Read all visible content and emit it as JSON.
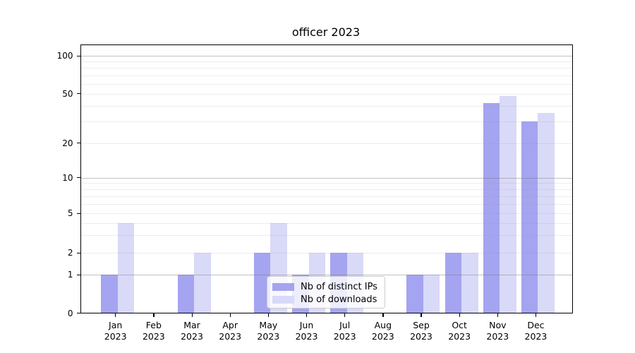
{
  "title": "officer 2023",
  "colors": {
    "distinct_ips_bar": "#a4a4f0",
    "downloads_bar": "#d9d9f8",
    "grid_major": "rgba(120,120,120,0.45)",
    "grid_minor": "rgba(150,150,150,0.18)",
    "axis_line": "#000000",
    "legend_border": "#cccccc"
  },
  "legend": {
    "items": [
      {
        "label": "Nb of distinct IPs"
      },
      {
        "label": "Nb of downloads"
      }
    ]
  },
  "axes": {
    "y_tick_labels": [
      "0",
      "1",
      "2",
      "5",
      "10",
      "20",
      "50",
      "100"
    ],
    "x_year": "2023"
  },
  "chart_data": {
    "type": "bar",
    "title": "officer 2023",
    "categories": [
      "Jan 2023",
      "Feb 2023",
      "Mar 2023",
      "Apr 2023",
      "May 2023",
      "Jun 2023",
      "Jul 2023",
      "Aug 2023",
      "Sep 2023",
      "Oct 2023",
      "Nov 2023",
      "Dec 2023"
    ],
    "series": [
      {
        "name": "Nb of distinct IPs",
        "color": "#a4a4f0",
        "values": [
          1,
          0,
          1,
          0,
          2,
          1,
          2,
          0,
          1,
          2,
          42,
          30
        ]
      },
      {
        "name": "Nb of downloads",
        "color": "#d9d9f8",
        "values": [
          4,
          0,
          2,
          0,
          4,
          2,
          2,
          0,
          1,
          2,
          48,
          35
        ]
      }
    ],
    "yscale": "symlog (linear 0-1, logarithmic above)",
    "yticks": [
      0,
      1,
      2,
      5,
      10,
      20,
      50,
      100
    ],
    "minor_grid_values": [
      2,
      3,
      4,
      5,
      6,
      7,
      8,
      9,
      20,
      30,
      40,
      50,
      60,
      70,
      80,
      90
    ],
    "major_grid_values": [
      1,
      10,
      100
    ],
    "ylim": [
      0,
      135
    ],
    "grid": "horizontal gridlines drawn over bars",
    "legend_position": "lower center inside plot"
  }
}
